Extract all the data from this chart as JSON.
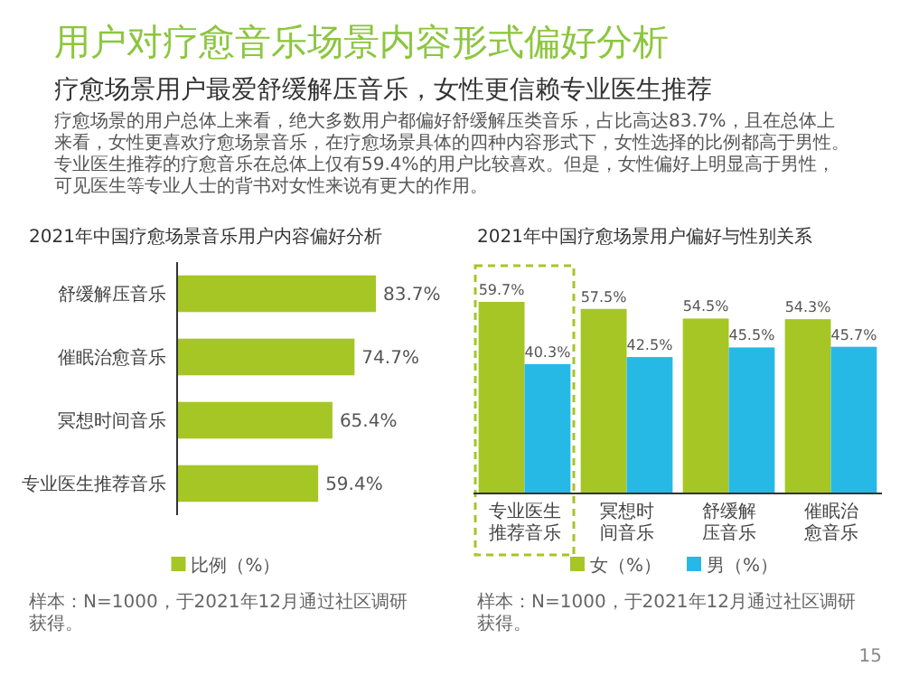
{
  "chart_data": [
    {
      "type": "other",
      "title": "用户对疗愈音乐场景内容形式偏好分析",
      "subtitle": "疗愈场景用户最爱舒缓解压音乐，女性更信赖专业医生推荐",
      "annotations": [
        "疗愈场景的用户总体上来看，绝大多数用户都偏好舒缓解压类音乐，占比高达83.7%，且在总体上来看，女性更喜欢疗愈场景音乐，在疗愈场景具体的四种内容形式下，女性选择的比例都高于男性。专业医生推荐的疗愈音乐在总体上仅有59.4%的用户比较喜欢。但是，女性偏好上明显高于男性，可见医生等专业人士的背书对女性来说有更大的作用。"
      ]
    },
    {
      "type": "bar",
      "orientation": "horizontal",
      "title": "2021年中国疗愈场景音乐用户内容偏好分析",
      "categories": [
        "舒缓解压音乐",
        "催眠治愈音乐",
        "冥想时间音乐",
        "专业医生推荐音乐"
      ],
      "series": [
        {
          "name": "比例（%）",
          "color": "#a6c626",
          "values": [
            83.7,
            74.7,
            65.4,
            59.4
          ],
          "value_labels": [
            "83.7%",
            "74.7%",
            "65.4%",
            "59.4%"
          ]
        }
      ],
      "legend": "bottom",
      "annotations": [
        "样本：N=1000，于2021年12月通过社区调研获得。"
      ]
    },
    {
      "type": "bar",
      "title": "2021年中国疗愈场景用户偏好与性别关系",
      "categories": [
        "专业医生推荐音乐",
        "冥想时间音乐",
        "舒缓解压音乐",
        "催眠治愈音乐"
      ],
      "series": [
        {
          "name": "女（%）",
          "color": "#a6c626",
          "values": [
            59.7,
            57.5,
            54.5,
            54.3
          ],
          "value_labels": [
            "59.7%",
            "57.5%",
            "54.5%",
            "54.3%"
          ]
        },
        {
          "name": "男（%）",
          "color": "#27b9e6",
          "values": [
            40.3,
            42.5,
            45.5,
            45.7
          ],
          "value_labels": [
            "40.3%",
            "42.5%",
            "45.5%",
            "45.7%"
          ]
        }
      ],
      "legend": "bottom",
      "annotations": [
        "样本：N=1000，于2021年12月通过社区调研获得。",
        "15"
      ]
    }
  ]
}
